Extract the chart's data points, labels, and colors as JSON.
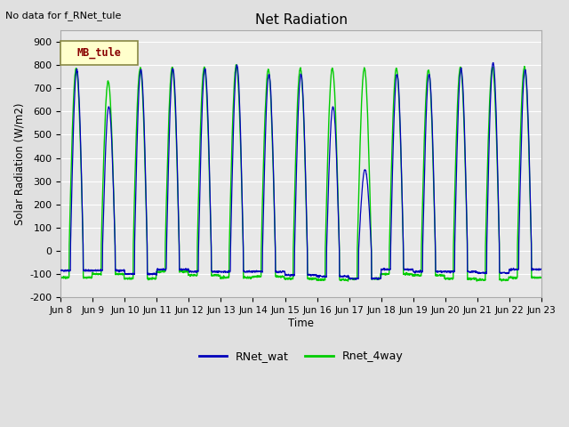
{
  "title": "Net Radiation",
  "ylabel": "Solar Radiation (W/m2)",
  "xlabel": "Time",
  "top_left_text": "No data for f_RNet_tule",
  "legend_box_text": "MB_tule",
  "legend_box_facecolor": "#FFFFCC",
  "legend_box_edgecolor": "#888844",
  "legend_box_text_color": "#880000",
  "ylim": [
    -200,
    950
  ],
  "yticks": [
    -200,
    -100,
    0,
    100,
    200,
    300,
    400,
    500,
    600,
    700,
    800,
    900
  ],
  "bg_color": "#E0E0E0",
  "plot_bg_color": "#E8E8E8",
  "line_color_blue": "#0000BB",
  "line_color_green": "#00CC00",
  "n_days": 15,
  "legend_entries": [
    "RNet_wat",
    "Rnet_4way"
  ],
  "tick_labels": [
    "Jun 8",
    "Jun 9",
    "Jun 10",
    "Jun 11",
    "Jun 12",
    "Jun 13",
    "Jun 14",
    "Jun 15",
    "Jun 16",
    "Jun 17",
    "Jun 18",
    "Jun 19",
    "Jun 20",
    "Jun 21",
    "Jun 22",
    "Jun 23"
  ]
}
